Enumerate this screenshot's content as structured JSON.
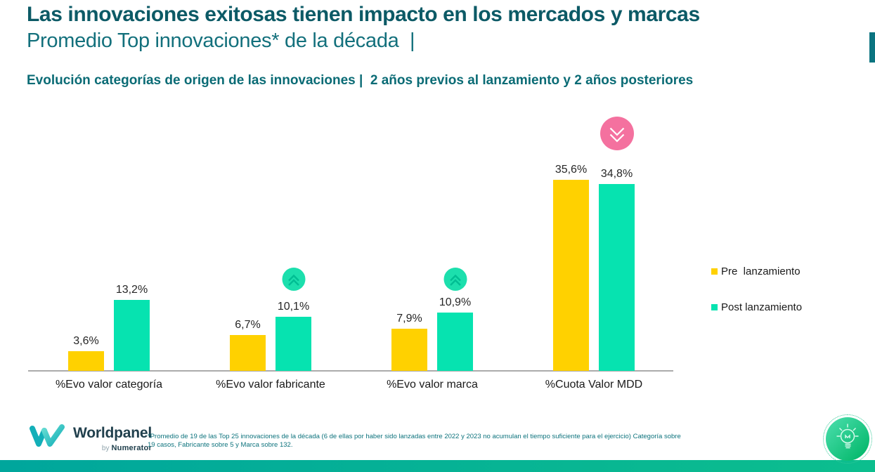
{
  "header": {
    "title": "Las innovaciones exitosas tienen impacto en los mercados y marcas",
    "subtitle": "Promedio Top innovaciones* de la década  |",
    "section_heading": "Evolución categorías de origen de las innovaciones |  2 años previos al lanzamiento y 2 años posteriores"
  },
  "chart_data": {
    "type": "bar",
    "title": "Evolución categorías de origen de las innovaciones",
    "subtitle": "2 años previos al lanzamiento y 2 años posteriores",
    "categories": [
      "%Evo valor categoría",
      "%Evo valor fabricante",
      "%Evo valor marca",
      "%Cuota Valor MDD"
    ],
    "series": [
      {
        "name": "Pre  lanzamiento",
        "color": "#FFD100",
        "values": [
          3.6,
          6.7,
          7.9,
          35.6
        ]
      },
      {
        "name": "Post lanzamiento",
        "color": "#06E3B0",
        "values": [
          13.2,
          10.1,
          10.9,
          34.8
        ]
      }
    ],
    "value_labels": [
      [
        "3,6%",
        "13,2%"
      ],
      [
        "6,7%",
        "10,1%"
      ],
      [
        "7,9%",
        "10,9%"
      ],
      [
        "35,6%",
        "34,8%"
      ]
    ],
    "indicators": [
      null,
      "up",
      "up",
      "down"
    ],
    "unit": "%",
    "ylim": [
      0,
      40
    ],
    "grid": false,
    "legend_position": "right",
    "value_label_format": "decimal-comma"
  },
  "icons": {
    "up_indicator": "chevrons-up-icon",
    "down_indicator": "chevrons-down-icon",
    "bulb": "lightbulb-icon",
    "logo_mark": "worldpanel-w-icon"
  },
  "colors": {
    "title": "#0C5A66",
    "subtitle": "#13707C",
    "section_heading": "#0A6B75",
    "pre_bar": "#FFD100",
    "post_bar": "#06E3B0",
    "indicator_up_bg": "#1CDFAD",
    "indicator_up_chevron": "#00BE93",
    "indicator_down_bg": "#F4719F",
    "indicator_down_chevron": "#FFFFFF",
    "axis_line": "#ABABAB",
    "bottom_bar_left": "#00A69C",
    "bottom_bar_right": "#0CBE8E",
    "footnote": "#0D737D"
  },
  "footer": {
    "logo": {
      "brand": "Worldpanel",
      "sub_prefix": "by",
      "sub_brand": "Numerator"
    },
    "footnote": "*Promedio de 19 de las Top 25 innovaciones de la década (6 de ellas por haber sido lanzadas entre 2022 y 2023 no acumulan el tiempo suficiente para el ejercicio) Categoría sobre 19 casos, Fabricante sobre 5 y Marca sobre 132."
  }
}
